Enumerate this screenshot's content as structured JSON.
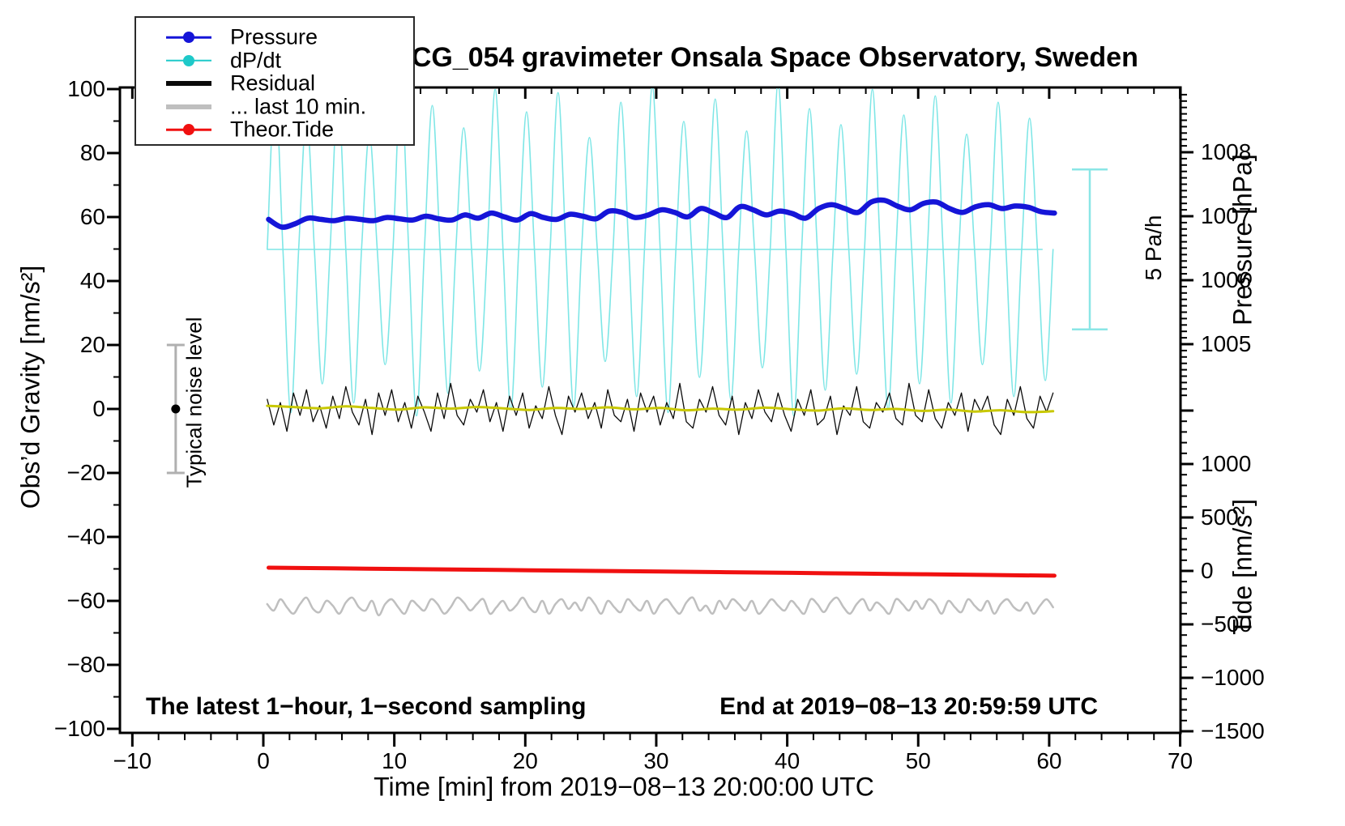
{
  "title": "SCG_054 gravimeter Onsala Space Observatory, Sweden",
  "annotations": {
    "sampling_note": "The latest 1−hour, 1−second sampling",
    "end_time_note": "End at 2019−08−13 20:59:59 UTC"
  },
  "legend": {
    "items": [
      {
        "label": "Pressure",
        "color": "#1515d8",
        "line_width": 2.5,
        "has_dot": true
      },
      {
        "label": "dP/dt",
        "color": "#1ec9c9",
        "line_width": 2.5,
        "has_dot": true
      },
      {
        "label": "Residual",
        "color": "#0a0a0a",
        "line_width": 6,
        "has_dot": false
      },
      {
        "label": "... last 10 min.",
        "color": "#bfbfbf",
        "line_width": 6,
        "has_dot": false
      },
      {
        "label": "Theor.Tide",
        "color": "#f01010",
        "line_width": 2.5,
        "has_dot": true
      }
    ]
  },
  "chart_data": {
    "type": "line",
    "title": "SCG_054 gravimeter Onsala Space Observatory, Sweden",
    "x_axis": {
      "label": "Time [min] from 2019−08−13 20:00:00 UTC",
      "range": [
        -10.95,
        70
      ],
      "ticks": [
        -10,
        0,
        10,
        20,
        30,
        40,
        50,
        60,
        70
      ],
      "tick_labels": [
        "−10",
        "0",
        "10",
        "20",
        "30",
        "40",
        "50",
        "60",
        "70"
      ],
      "minor_step": 2
    },
    "y_left": {
      "label": "Obs’d Gravity [nm/s²]",
      "range": [
        -101,
        100.5
      ],
      "ticks": [
        -100,
        -80,
        -60,
        -40,
        -20,
        0,
        20,
        40,
        60,
        80,
        100
      ],
      "tick_labels": [
        "−100",
        "−80",
        "−60",
        "−40",
        "−20",
        "0",
        "20",
        "40",
        "60",
        "80",
        "100"
      ],
      "minor_step": 10
    },
    "y_pressure": {
      "label": "Pressure [hPa]",
      "range": [
        1004.2,
        1008.9
      ],
      "ticks": [
        1005,
        1006,
        1007,
        1008
      ],
      "tick_labels": [
        "1005",
        "1006",
        "1007",
        "1008"
      ],
      "minor_step": 0.1
    },
    "y_tide": {
      "label": "Tide [nm/s²]",
      "range": [
        -1500,
        1500
      ],
      "ticks": [
        -1500,
        -1000,
        -500,
        0,
        500,
        1000
      ],
      "tick_labels": [
        "−1500",
        "−1000",
        "−500",
        "0",
        "500",
        "1000"
      ],
      "extra_major_ticks": [
        1500
      ],
      "minor_step": 100
    },
    "reference_line": {
      "axis": "dpdt",
      "value": 0,
      "x_from": 0.3,
      "x_to": 59.5,
      "color": "#7ee6e6"
    },
    "scale_bar": {
      "label": "5 Pa/h",
      "pa_per_h": 5,
      "color": "#8ae6e6"
    },
    "noise_bar": {
      "label": "Typical noise level",
      "x_min": -7,
      "from": -20,
      "to": 20,
      "center": 0,
      "color": "#b0b0b0"
    },
    "series": [
      {
        "name": "dP/dt",
        "id": "dpdt",
        "axis": "dpdt",
        "color": "#7ee6e6",
        "width": 1.6,
        "smooth": true,
        "unit": "Pa/h",
        "x0": 0.3,
        "dx": 0.6,
        "values": [
          0,
          5.1,
          0,
          -5.1,
          0,
          4.2,
          0,
          -4.2,
          0,
          4.8,
          0,
          -4.8,
          0,
          3.6,
          0,
          -3.6,
          0,
          5.2,
          0,
          -5.2,
          0,
          4.5,
          0,
          -4.5,
          0,
          3.8,
          0,
          -3.8,
          0,
          5.0,
          0,
          -5.0,
          0,
          4.3,
          0,
          -4.3,
          0,
          4.9,
          0,
          -4.9,
          0,
          3.5,
          0,
          -3.5,
          0,
          4.6,
          0,
          -4.6,
          0,
          5.1,
          0,
          -5.1,
          0,
          4.0,
          0,
          -4.0,
          0,
          4.7,
          0,
          -4.7,
          0,
          3.7,
          0,
          -3.7,
          0,
          5.2,
          0,
          -5.2,
          0,
          4.4,
          0,
          -4.4,
          0,
          3.9,
          0,
          -3.9,
          0,
          5.0,
          0,
          -5.0,
          0,
          4.2,
          0,
          -4.2,
          0,
          4.8,
          0,
          -4.8,
          0,
          3.6,
          0,
          -3.6,
          0,
          4.6,
          0,
          -4.6,
          0,
          4.1,
          0,
          -4.1,
          0
        ]
      },
      {
        "name": "Residual",
        "id": "residual",
        "axis": "gravity",
        "color": "#0a0a0a",
        "width": 1.3,
        "smooth": false,
        "unit": "nm/s2",
        "x0": 0.3,
        "dx": 0.5,
        "values": [
          3,
          -5,
          2,
          -7,
          5,
          -2,
          6,
          -4,
          1,
          -6,
          4,
          -3,
          7,
          -1,
          -5,
          3,
          -8,
          5,
          -2,
          6,
          -4,
          2,
          -6,
          4,
          -1,
          -7,
          5,
          -3,
          8,
          -2,
          -5,
          3,
          -1,
          6,
          -4,
          2,
          -7,
          4,
          -2,
          5,
          -6,
          1,
          -3,
          7,
          -2,
          -8,
          4,
          -1,
          5,
          -3,
          2,
          -6,
          6,
          -2,
          -4,
          3,
          -7,
          5,
          -1,
          4,
          -5,
          2,
          -3,
          8,
          -4,
          -6,
          3,
          -1,
          7,
          -2,
          -5,
          4,
          -8,
          2,
          -3,
          6,
          -1,
          -4,
          5,
          -2,
          -7,
          3,
          -2,
          6,
          -5,
          -3,
          4,
          -8,
          1,
          -2,
          7,
          -4,
          -6,
          2,
          -1,
          5,
          -3,
          -5,
          8,
          -2,
          -4,
          6,
          -3,
          -6,
          2,
          -2,
          5,
          -7,
          3,
          -1,
          4,
          -5,
          -8,
          3,
          -2,
          7,
          -3,
          -6,
          4,
          -1,
          5
        ]
      },
      {
        "name": "Residual smoothed",
        "id": "residual-smooth",
        "axis": "gravity",
        "color": "#c8c800",
        "width": 3,
        "smooth": true,
        "unit": "nm/s2",
        "x0": 0.3,
        "dx": 2,
        "values": [
          1.0,
          0.6,
          0.2,
          0.8,
          0.3,
          -0.2,
          0.5,
          0.1,
          0.6,
          0.2,
          -0.3,
          0.3,
          0.0,
          0.5,
          -0.1,
          0.3,
          -0.4,
          0.1,
          -0.2,
          0.4,
          -0.1,
          -0.5,
          0.2,
          -0.3,
          0.0,
          -0.6,
          -0.2,
          -0.8,
          -0.4,
          -1.0,
          -0.7
        ]
      },
      {
        "name": "... last 10 min.",
        "id": "last10",
        "axis": "gravity",
        "color": "#bfbfbf",
        "width": 2.5,
        "smooth": true,
        "unit": "nm/s2",
        "x0": 0.3,
        "dx": 0.5,
        "values": [
          -61,
          -63,
          -59.5,
          -62,
          -64,
          -61,
          -59,
          -62.5,
          -63.5,
          -60,
          -61.5,
          -64,
          -60.5,
          -59,
          -62,
          -63,
          -60,
          -64.5,
          -61,
          -59.5,
          -62,
          -64,
          -60,
          -61.5,
          -63,
          -59.5,
          -61,
          -64,
          -62,
          -59,
          -60.5,
          -63,
          -61,
          -59.5,
          -64,
          -62,
          -60,
          -63,
          -61.5,
          -59,
          -62,
          -63.5,
          -60,
          -64,
          -61,
          -59.5,
          -62.5,
          -60.5,
          -63,
          -59,
          -61,
          -64,
          -60,
          -62,
          -63.5,
          -59.5,
          -61.5,
          -63,
          -60,
          -64,
          -61,
          -59.5,
          -62,
          -64,
          -60.5,
          -59,
          -63,
          -61.5,
          -64,
          -60,
          -62.5,
          -59.5,
          -61,
          -63,
          -60,
          -64,
          -62,
          -59.5,
          -61.5,
          -63,
          -60,
          -62,
          -64,
          -59.5,
          -61,
          -63.5,
          -60.5,
          -59,
          -62,
          -64,
          -61,
          -59.5,
          -63,
          -60.5,
          -62,
          -64,
          -59.5,
          -61,
          -63,
          -60,
          -62.5,
          -59.5,
          -61,
          -64,
          -60,
          -62,
          -63.5,
          -59.5,
          -61.5,
          -63,
          -60,
          -64,
          -61,
          -59.5,
          -62,
          -63,
          -60.5,
          -64,
          -61.5,
          -59.5,
          -62
        ]
      },
      {
        "name": "Theor.Tide",
        "id": "tide",
        "axis": "tide",
        "color": "#f01010",
        "width": 5,
        "smooth": true,
        "unit": "nm/s2",
        "x0": 0.4,
        "dx": 5,
        "values": [
          30,
          24,
          18,
          12,
          6,
          0,
          -6,
          -12,
          -18,
          -25,
          -31,
          -38,
          -45
        ]
      },
      {
        "name": "Pressure",
        "id": "pressure",
        "axis": "pressure",
        "color": "#1515d8",
        "width": 6.5,
        "smooth": true,
        "unit": "hPa",
        "x0": 0.4,
        "dx": 1,
        "values": [
          1006.95,
          1006.83,
          1006.88,
          1006.97,
          1006.95,
          1006.93,
          1006.97,
          1006.95,
          1006.93,
          1006.98,
          1006.96,
          1006.94,
          1007.0,
          1006.96,
          1006.94,
          1007.02,
          1006.97,
          1007.05,
          1006.99,
          1006.94,
          1007.04,
          1006.98,
          1006.95,
          1007.03,
          1007.0,
          1006.96,
          1007.08,
          1007.06,
          1006.98,
          1007.02,
          1007.1,
          1007.06,
          1006.99,
          1007.12,
          1007.05,
          1006.98,
          1007.15,
          1007.1,
          1007.02,
          1007.08,
          1007.04,
          1006.97,
          1007.12,
          1007.18,
          1007.12,
          1007.06,
          1007.22,
          1007.25,
          1007.16,
          1007.1,
          1007.2,
          1007.22,
          1007.12,
          1007.06,
          1007.15,
          1007.18,
          1007.12,
          1007.16,
          1007.14,
          1007.07,
          1007.05
        ]
      }
    ]
  }
}
